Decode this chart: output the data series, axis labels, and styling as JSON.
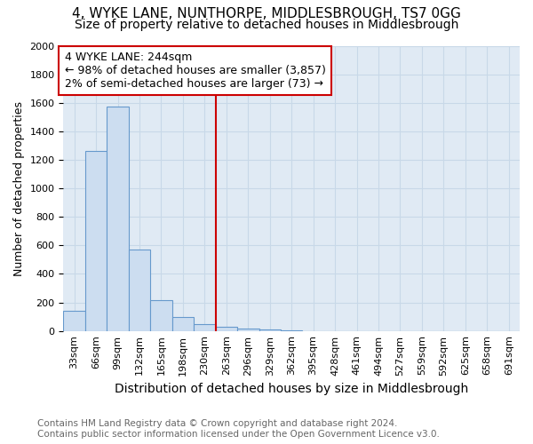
{
  "title": "4, WYKE LANE, NUNTHORPE, MIDDLESBROUGH, TS7 0GG",
  "subtitle": "Size of property relative to detached houses in Middlesbrough",
  "xlabel": "Distribution of detached houses by size in Middlesbrough",
  "ylabel": "Number of detached properties",
  "footer_line1": "Contains HM Land Registry data © Crown copyright and database right 2024.",
  "footer_line2": "Contains public sector information licensed under the Open Government Licence v3.0.",
  "bar_labels": [
    "33sqm",
    "66sqm",
    "99sqm",
    "132sqm",
    "165sqm",
    "198sqm",
    "230sqm",
    "263sqm",
    "296sqm",
    "329sqm",
    "362sqm",
    "395sqm",
    "428sqm",
    "461sqm",
    "494sqm",
    "527sqm",
    "559sqm",
    "592sqm",
    "625sqm",
    "658sqm",
    "691sqm"
  ],
  "bar_values": [
    140,
    1265,
    1575,
    570,
    215,
    95,
    50,
    30,
    15,
    10,
    5,
    0,
    0,
    0,
    0,
    0,
    0,
    0,
    0,
    0,
    0
  ],
  "bar_color": "#ccddf0",
  "bar_edge_color": "#6699cc",
  "grid_color": "#c8d8e8",
  "background_color": "#e0eaf4",
  "vline_x": 6.5,
  "vline_color": "#cc0000",
  "annotation_line1": "4 WYKE LANE: 244sqm",
  "annotation_line2": "← 98% of detached houses are smaller (3,857)",
  "annotation_line3": "2% of semi-detached houses are larger (73) →",
  "annotation_box_edgecolor": "#cc0000",
  "ylim_max": 2000,
  "ytick_step": 200,
  "title_fontsize": 11,
  "subtitle_fontsize": 10,
  "xlabel_fontsize": 10,
  "ylabel_fontsize": 9,
  "tick_fontsize": 8,
  "annotation_fontsize": 9,
  "footer_fontsize": 7.5
}
